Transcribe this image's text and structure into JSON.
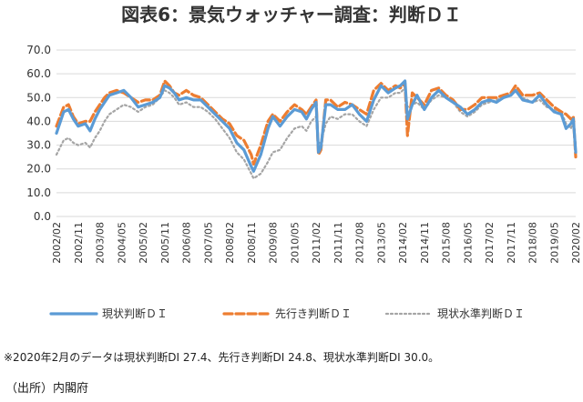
{
  "chart_data": {
    "type": "line",
    "title": "図表6：景気ウォッチャー調査：判断ＤＩ",
    "ylim": [
      0,
      70
    ],
    "yticks": [
      "0.0",
      "10.0",
      "20.0",
      "30.0",
      "40.0",
      "50.0",
      "60.0",
      "70.0"
    ],
    "x_tick_labels": [
      "2002/02",
      "2002/11",
      "2003/08",
      "2004/05",
      "2005/02",
      "2005/11",
      "2006/08",
      "2007/05",
      "2008/02",
      "2008/11",
      "2009/08",
      "2010/05",
      "2011/02",
      "2011/11",
      "2012/08",
      "2013/05",
      "2014/02",
      "2014/11",
      "2015/08",
      "2016/05",
      "2017/02",
      "2017/11",
      "2018/08",
      "2019/05",
      "2020/02"
    ],
    "x_start": "2002/02",
    "x_end": "2020/02",
    "legend_position": "bottom",
    "grid": true,
    "series": [
      {
        "name": "現状判断ＤＩ",
        "color": "#5b9bd5",
        "style": "solid",
        "points": [
          [
            "2002/02",
            35
          ],
          [
            "2002/05",
            44
          ],
          [
            "2002/07",
            45
          ],
          [
            "2002/09",
            41
          ],
          [
            "2002/11",
            38
          ],
          [
            "2003/02",
            39
          ],
          [
            "2003/04",
            36
          ],
          [
            "2003/06",
            41
          ],
          [
            "2003/08",
            45
          ],
          [
            "2003/10",
            48
          ],
          [
            "2003/12",
            51
          ],
          [
            "2004/03",
            52
          ],
          [
            "2004/06",
            53
          ],
          [
            "2004/09",
            50
          ],
          [
            "2004/12",
            46
          ],
          [
            "2005/03",
            47
          ],
          [
            "2005/06",
            48
          ],
          [
            "2005/09",
            50
          ],
          [
            "2005/11",
            55
          ],
          [
            "2006/01",
            54
          ],
          [
            "2006/03",
            52
          ],
          [
            "2006/05",
            49
          ],
          [
            "2006/08",
            50
          ],
          [
            "2006/11",
            49
          ],
          [
            "2007/02",
            49
          ],
          [
            "2007/05",
            46
          ],
          [
            "2007/08",
            43
          ],
          [
            "2007/11",
            40
          ],
          [
            "2008/02",
            37
          ],
          [
            "2008/05",
            31
          ],
          [
            "2008/08",
            28
          ],
          [
            "2008/11",
            21
          ],
          [
            "2008/12",
            19
          ],
          [
            "2009/03",
            26
          ],
          [
            "2009/06",
            37
          ],
          [
            "2009/08",
            42
          ],
          [
            "2009/11",
            38
          ],
          [
            "2010/02",
            42
          ],
          [
            "2010/05",
            45
          ],
          [
            "2010/08",
            44
          ],
          [
            "2010/10",
            41
          ],
          [
            "2010/12",
            45
          ],
          [
            "2011/02",
            48
          ],
          [
            "2011/03",
            27
          ],
          [
            "2011/04",
            29
          ],
          [
            "2011/06",
            47
          ],
          [
            "2011/08",
            47
          ],
          [
            "2011/11",
            45
          ],
          [
            "2012/02",
            45
          ],
          [
            "2012/05",
            47
          ],
          [
            "2012/08",
            43
          ],
          [
            "2012/11",
            40
          ],
          [
            "2013/02",
            49
          ],
          [
            "2013/05",
            55
          ],
          [
            "2013/08",
            52
          ],
          [
            "2013/11",
            54
          ],
          [
            "2014/01",
            55
          ],
          [
            "2014/03",
            57
          ],
          [
            "2014/04",
            41
          ],
          [
            "2014/06",
            47
          ],
          [
            "2014/08",
            51
          ],
          [
            "2014/11",
            45
          ],
          [
            "2015/02",
            50
          ],
          [
            "2015/05",
            53
          ],
          [
            "2015/08",
            50
          ],
          [
            "2015/11",
            48
          ],
          [
            "2016/02",
            46
          ],
          [
            "2016/05",
            43
          ],
          [
            "2016/08",
            45
          ],
          [
            "2016/11",
            48
          ],
          [
            "2017/02",
            49
          ],
          [
            "2017/05",
            48
          ],
          [
            "2017/08",
            50
          ],
          [
            "2017/11",
            51
          ],
          [
            "2018/01",
            53
          ],
          [
            "2018/04",
            49
          ],
          [
            "2018/08",
            48
          ],
          [
            "2018/11",
            51
          ],
          [
            "2019/02",
            47
          ],
          [
            "2019/05",
            44
          ],
          [
            "2019/08",
            43
          ],
          [
            "2019/10",
            37
          ],
          [
            "2019/12",
            39
          ],
          [
            "2020/01",
            41
          ],
          [
            "2020/02",
            27
          ]
        ]
      },
      {
        "name": "先行き判断ＤＩ",
        "color": "#ed7d31",
        "style": "dashed",
        "points": [
          [
            "2002/02",
            38
          ],
          [
            "2002/05",
            46
          ],
          [
            "2002/07",
            47
          ],
          [
            "2002/09",
            42
          ],
          [
            "2002/11",
            39
          ],
          [
            "2003/02",
            40
          ],
          [
            "2003/04",
            40
          ],
          [
            "2003/06",
            44
          ],
          [
            "2003/08",
            47
          ],
          [
            "2003/10",
            50
          ],
          [
            "2003/12",
            52
          ],
          [
            "2004/03",
            53
          ],
          [
            "2004/06",
            52
          ],
          [
            "2004/09",
            50
          ],
          [
            "2004/12",
            48
          ],
          [
            "2005/03",
            49
          ],
          [
            "2005/06",
            49
          ],
          [
            "2005/09",
            51
          ],
          [
            "2005/11",
            57
          ],
          [
            "2006/01",
            55
          ],
          [
            "2006/03",
            52
          ],
          [
            "2006/05",
            51
          ],
          [
            "2006/08",
            53
          ],
          [
            "2006/11",
            51
          ],
          [
            "2007/02",
            50
          ],
          [
            "2007/05",
            47
          ],
          [
            "2007/08",
            44
          ],
          [
            "2007/11",
            41
          ],
          [
            "2008/02",
            39
          ],
          [
            "2008/05",
            34
          ],
          [
            "2008/08",
            32
          ],
          [
            "2008/11",
            26
          ],
          [
            "2008/12",
            22
          ],
          [
            "2009/03",
            30
          ],
          [
            "2009/06",
            40
          ],
          [
            "2009/08",
            43
          ],
          [
            "2009/11",
            40
          ],
          [
            "2010/02",
            44
          ],
          [
            "2010/05",
            47
          ],
          [
            "2010/08",
            45
          ],
          [
            "2010/10",
            43
          ],
          [
            "2010/12",
            46
          ],
          [
            "2011/02",
            49
          ],
          [
            "2011/03",
            26
          ],
          [
            "2011/04",
            28
          ],
          [
            "2011/06",
            49
          ],
          [
            "2011/08",
            49
          ],
          [
            "2011/11",
            46
          ],
          [
            "2012/02",
            48
          ],
          [
            "2012/05",
            47
          ],
          [
            "2012/08",
            45
          ],
          [
            "2012/11",
            43
          ],
          [
            "2013/02",
            53
          ],
          [
            "2013/05",
            56
          ],
          [
            "2013/08",
            53
          ],
          [
            "2013/11",
            55
          ],
          [
            "2014/01",
            54
          ],
          [
            "2014/03",
            56
          ],
          [
            "2014/04",
            34
          ],
          [
            "2014/06",
            52
          ],
          [
            "2014/08",
            50
          ],
          [
            "2014/11",
            47
          ],
          [
            "2015/02",
            53
          ],
          [
            "2015/05",
            54
          ],
          [
            "2015/08",
            51
          ],
          [
            "2015/11",
            49
          ],
          [
            "2016/02",
            45
          ],
          [
            "2016/05",
            45
          ],
          [
            "2016/08",
            47
          ],
          [
            "2016/11",
            50
          ],
          [
            "2017/02",
            50
          ],
          [
            "2017/05",
            50
          ],
          [
            "2017/08",
            51
          ],
          [
            "2017/11",
            52
          ],
          [
            "2018/01",
            55
          ],
          [
            "2018/04",
            51
          ],
          [
            "2018/08",
            51
          ],
          [
            "2018/11",
            52
          ],
          [
            "2019/02",
            49
          ],
          [
            "2019/05",
            46
          ],
          [
            "2019/08",
            44
          ],
          [
            "2019/10",
            43
          ],
          [
            "2019/12",
            41
          ],
          [
            "2020/01",
            42
          ],
          [
            "2020/02",
            25
          ]
        ]
      },
      {
        "name": "現状水準判断ＤＩ",
        "color": "#a5a5a5",
        "style": "dotted",
        "points": [
          [
            "2002/02",
            26
          ],
          [
            "2002/05",
            32
          ],
          [
            "2002/07",
            33
          ],
          [
            "2002/09",
            31
          ],
          [
            "2002/11",
            30
          ],
          [
            "2003/02",
            31
          ],
          [
            "2003/04",
            29
          ],
          [
            "2003/06",
            33
          ],
          [
            "2003/08",
            36
          ],
          [
            "2003/10",
            40
          ],
          [
            "2003/12",
            43
          ],
          [
            "2004/03",
            45
          ],
          [
            "2004/06",
            47
          ],
          [
            "2004/09",
            46
          ],
          [
            "2004/12",
            44
          ],
          [
            "2005/03",
            46
          ],
          [
            "2005/06",
            47
          ],
          [
            "2005/09",
            50
          ],
          [
            "2005/11",
            53
          ],
          [
            "2006/01",
            52
          ],
          [
            "2006/03",
            50
          ],
          [
            "2006/05",
            47
          ],
          [
            "2006/08",
            48
          ],
          [
            "2006/11",
            46
          ],
          [
            "2007/02",
            46
          ],
          [
            "2007/05",
            44
          ],
          [
            "2007/08",
            41
          ],
          [
            "2007/11",
            37
          ],
          [
            "2008/02",
            33
          ],
          [
            "2008/05",
            27
          ],
          [
            "2008/08",
            24
          ],
          [
            "2008/11",
            18
          ],
          [
            "2008/12",
            16
          ],
          [
            "2009/03",
            18
          ],
          [
            "2009/06",
            23
          ],
          [
            "2009/08",
            27
          ],
          [
            "2009/11",
            28
          ],
          [
            "2010/02",
            33
          ],
          [
            "2010/05",
            37
          ],
          [
            "2010/08",
            38
          ],
          [
            "2010/10",
            36
          ],
          [
            "2010/12",
            40
          ],
          [
            "2011/02",
            42
          ],
          [
            "2011/03",
            31
          ],
          [
            "2011/04",
            31
          ],
          [
            "2011/06",
            39
          ],
          [
            "2011/08",
            42
          ],
          [
            "2011/11",
            41
          ],
          [
            "2012/02",
            43
          ],
          [
            "2012/05",
            43
          ],
          [
            "2012/08",
            40
          ],
          [
            "2012/11",
            38
          ],
          [
            "2013/02",
            45
          ],
          [
            "2013/05",
            50
          ],
          [
            "2013/08",
            50
          ],
          [
            "2013/11",
            52
          ],
          [
            "2014/01",
            52
          ],
          [
            "2014/03",
            54
          ],
          [
            "2014/04",
            46
          ],
          [
            "2014/06",
            47
          ],
          [
            "2014/08",
            48
          ],
          [
            "2014/11",
            45
          ],
          [
            "2015/02",
            49
          ],
          [
            "2015/05",
            51
          ],
          [
            "2015/08",
            50
          ],
          [
            "2015/11",
            48
          ],
          [
            "2016/02",
            44
          ],
          [
            "2016/05",
            42
          ],
          [
            "2016/08",
            44
          ],
          [
            "2016/11",
            47
          ],
          [
            "2017/02",
            48
          ],
          [
            "2017/05",
            49
          ],
          [
            "2017/08",
            50
          ],
          [
            "2017/11",
            51
          ],
          [
            "2018/01",
            53
          ],
          [
            "2018/04",
            50
          ],
          [
            "2018/08",
            48
          ],
          [
            "2018/11",
            49
          ],
          [
            "2019/02",
            46
          ],
          [
            "2019/05",
            45
          ],
          [
            "2019/08",
            44
          ],
          [
            "2019/10",
            39
          ],
          [
            "2019/12",
            37
          ],
          [
            "2020/01",
            40
          ],
          [
            "2020/02",
            30
          ]
        ]
      }
    ]
  },
  "note": "※2020年2月のデータは現状判断DI 27.4、先行き判断DI 24.8、現状水準判断DI 30.0。",
  "source": "（出所）内閣府"
}
